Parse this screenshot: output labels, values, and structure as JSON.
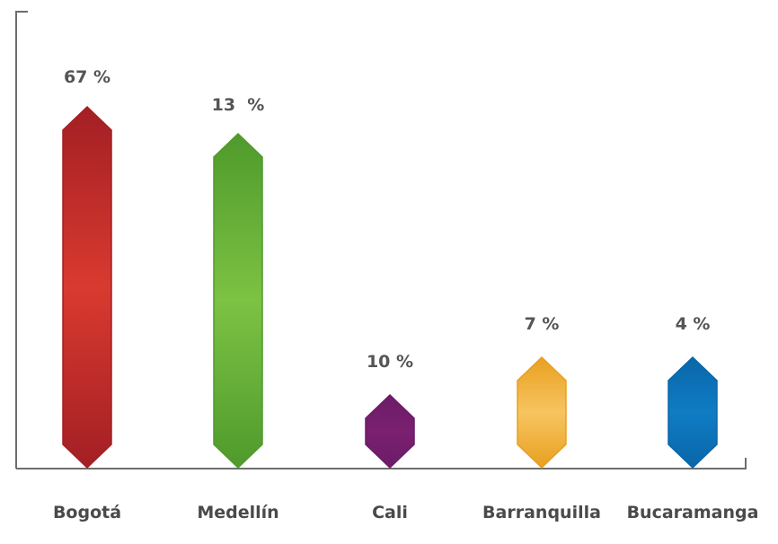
{
  "chart_data": {
    "type": "bar",
    "categories": [
      "Bogotá",
      "Medellín",
      "Cali",
      "Barranquilla",
      "Bucaramanga"
    ],
    "values": [
      67,
      13,
      10,
      7,
      4
    ],
    "data_labels": [
      "67 %",
      "13  %",
      "10 %",
      "7 %",
      "4 %"
    ],
    "grid": false,
    "legend": "none",
    "colors": {
      "Bogotá": {
        "edge": "#a31f24",
        "mid": "#d93a2f"
      },
      "Medellín": {
        "edge": "#4f9a2c",
        "mid": "#7cc243"
      },
      "Cali": {
        "edge": "#6b1c68",
        "mid": "#7a206f"
      },
      "Barranquilla": {
        "edge": "#e8a020",
        "mid": "#f7c460"
      },
      "Bucaramanga": {
        "edge": "#0a66a8",
        "mid": "#0f7cc4"
      }
    }
  }
}
